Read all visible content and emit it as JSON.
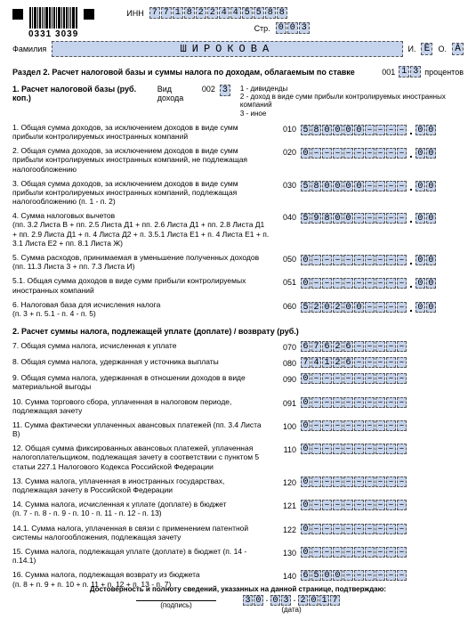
{
  "barcode_number": "0331 3039",
  "inn_label": "ИНН",
  "inn": [
    "7",
    "7",
    "1",
    "8",
    "2",
    "2",
    "4",
    "4",
    "5",
    "5",
    "8",
    "8"
  ],
  "str_label": "Стр.",
  "str": [
    "0",
    "0",
    "3"
  ],
  "familia_label": "Фамилия",
  "familia": "ШИРОКОВА",
  "i_label": "И.",
  "i_val": "Е",
  "o_label": "О.",
  "o_val": "А",
  "section2_title": "Раздел 2. Расчет налоговой базы и суммы налога по доходам, облагаемым по ставке",
  "section2_code": "001",
  "stavka": [
    "1",
    "3"
  ],
  "stavka_suffix": "процентов",
  "row1_label": "1. Расчет налоговой базы (руб. коп.)",
  "row1_sub": "Вид дохода",
  "row1_code": "002",
  "row1_vid": [
    "3"
  ],
  "row1_notes": "1 - дивиденды\n2 - доход в виде сумм прибыли контролируемых иностранных компаний\n3 - иное",
  "items": [
    {
      "n": "1.",
      "txt": "Общая сумма доходов, за исключением доходов в виде сумм прибыли контролируемых иностранных компаний",
      "code": "010",
      "int": [
        "5",
        "8",
        "0",
        "0",
        "0",
        "0",
        "–",
        "–",
        "–",
        "–"
      ],
      "dec": [
        "0",
        "0"
      ]
    },
    {
      "n": "2.",
      "txt": "Общая сумма доходов, за исключением доходов в виде сумм прибыли контролируемых иностранных компаний, не подлежащая налогообложению",
      "code": "020",
      "int": [
        "0",
        "–",
        "–",
        "–",
        "–",
        "–",
        "–",
        "–",
        "–",
        "–"
      ],
      "dec": [
        "0",
        "0"
      ]
    },
    {
      "n": "3.",
      "txt": "Общая сумма доходов, за исключением доходов в виде сумм прибыли контролируемых иностранных компаний, подлежащая налогообложению (п. 1 - п. 2)",
      "code": "030",
      "int": [
        "5",
        "8",
        "0",
        "0",
        "0",
        "0",
        "–",
        "–",
        "–",
        "–"
      ],
      "dec": [
        "0",
        "0"
      ]
    },
    {
      "n": "4.",
      "txt": "Сумма налоговых вычетов\n(пп. 3.2 Листа В + пп. 2.5 Листа Д1 + пп. 2.6 Листа Д1 + пп. 2.8 Листа Д1 + пп. 2.9 Листа Д1 + п. 4 Листа Д2 + п. 3.5.1 Листа Е1 + п. 4 Листа Е1 + п. 3.1 Листа Е2 + пп. 8.1 Листа Ж)",
      "code": "040",
      "int": [
        "5",
        "9",
        "8",
        "0",
        "0",
        "–",
        "–",
        "–",
        "–",
        "–"
      ],
      "dec": [
        "0",
        "0"
      ]
    },
    {
      "n": "5.",
      "txt": "Сумма расходов, принимаемая в уменьшение полученных доходов (пп. 11.3 Листа 3 + пп. 7.3 Листа И)",
      "code": "050",
      "int": [
        "0",
        "–",
        "–",
        "–",
        "–",
        "–",
        "–",
        "–",
        "–",
        "–"
      ],
      "dec": [
        "0",
        "0"
      ]
    },
    {
      "n": "5.1.",
      "txt": "Общая сумма доходов в виде сумм прибыли контролируемых иностранных компаний",
      "code": "051",
      "int": [
        "0",
        "–",
        "–",
        "–",
        "–",
        "–",
        "–",
        "–",
        "–",
        "–"
      ],
      "dec": [
        "0",
        "0"
      ]
    },
    {
      "n": "6.",
      "txt": "Налоговая база для исчисления налога\n(п. 3 + п. 5.1 - п. 4 - п. 5)",
      "code": "060",
      "int": [
        "5",
        "2",
        "0",
        "2",
        "0",
        "0",
        "–",
        "–",
        "–",
        "–"
      ],
      "dec": [
        "0",
        "0"
      ]
    }
  ],
  "sub2_title": "2. Расчет суммы налога, подлежащей уплате (доплате) / возврату (руб.)",
  "items2": [
    {
      "n": "7.",
      "txt": "Общая сумма налога, исчисленная к уплате",
      "code": "070",
      "int": [
        "6",
        "7",
        "6",
        "2",
        "6",
        "–",
        "–",
        "–",
        "–",
        "–"
      ]
    },
    {
      "n": "8.",
      "txt": "Общая сумма налога, удержанная у источника выплаты",
      "code": "080",
      "int": [
        "7",
        "4",
        "1",
        "2",
        "6",
        "–",
        "–",
        "–",
        "–",
        "–"
      ]
    },
    {
      "n": "9.",
      "txt": "Общая сумма налога, удержанная в отношении доходов в виде материальной выгоды",
      "code": "090",
      "int": [
        "0",
        "–",
        "–",
        "–",
        "–",
        "–",
        "–",
        "–",
        "–",
        "–"
      ]
    },
    {
      "n": "10.",
      "txt": "Сумма торгового сбора, уплаченная в налоговом периоде, подлежащая зачету",
      "code": "091",
      "int": [
        "0",
        "–",
        "–",
        "–",
        "–",
        "–",
        "–",
        "–",
        "–",
        "–"
      ]
    },
    {
      "n": "11.",
      "txt": "Сумма фактически уплаченных авансовых платежей (пп. 3.4 Листа В)",
      "code": "100",
      "int": [
        "0",
        "–",
        "–",
        "–",
        "–",
        "–",
        "–",
        "–",
        "–",
        "–"
      ]
    },
    {
      "n": "12.",
      "txt": "Общая сумма фиксированных авансовых платежей, уплаченная налогоплательщиком, подлежащая зачету в соответствии с пунктом 5 статьи 227.1 Налогового Кодекса Российской Федерации",
      "code": "110",
      "int": [
        "0",
        "–",
        "–",
        "–",
        "–",
        "–",
        "–",
        "–",
        "–",
        "–"
      ]
    },
    {
      "n": "13.",
      "txt": "Сумма налога, уплаченная в иностранных государствах, подлежащая зачету в Российской Федерации",
      "code": "120",
      "int": [
        "0",
        "–",
        "–",
        "–",
        "–",
        "–",
        "–",
        "–",
        "–",
        "–"
      ]
    },
    {
      "n": "14.",
      "txt": "Сумма налога, исчисленная к уплате (доплате) в бюджет\n(п. 7 - п. 8 - п. 9 - п. 10 - п. 11 - п. 12 - п. 13)",
      "code": "121",
      "int": [
        "0",
        "–",
        "–",
        "–",
        "–",
        "–",
        "–",
        "–",
        "–",
        "–"
      ]
    },
    {
      "n": "14.1.",
      "txt": "Сумма налога, уплаченная в связи с применением патентной системы налогообложения, подлежащая зачету",
      "code": "122",
      "int": [
        "0",
        "–",
        "–",
        "–",
        "–",
        "–",
        "–",
        "–",
        "–",
        "–"
      ]
    },
    {
      "n": "15.",
      "txt": "Сумма налога, подлежащая уплате (доплате) в бюджет (п. 14 - п.14.1)",
      "code": "130",
      "int": [
        "0",
        "–",
        "–",
        "–",
        "–",
        "–",
        "–",
        "–",
        "–",
        "–"
      ]
    },
    {
      "n": "16.",
      "txt": "Сумма налога, подлежащая возврату из бюджета\n(п. 8 + п. 9 + п. 10 + п. 11 + п. 12 + п. 13 - п. 7)",
      "code": "140",
      "int": [
        "6",
        "5",
        "0",
        "0",
        "–",
        "–",
        "–",
        "–",
        "–",
        "–"
      ]
    }
  ],
  "footer_title": "Достоверность и полноту сведений, указанных на данной странице, подтверждаю:",
  "footer_sig": "(подпись)",
  "footer_date_label": "(дата)",
  "footer_date": [
    "3",
    "0",
    ".",
    "0",
    "3",
    ".",
    "2",
    "0",
    "1",
    "7"
  ]
}
